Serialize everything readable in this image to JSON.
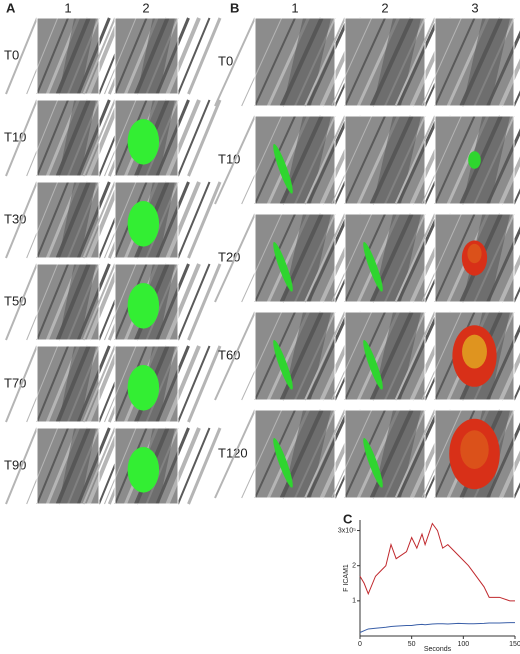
{
  "panel_a": {
    "label": "A",
    "columns": [
      "1",
      "2"
    ],
    "rows": [
      "T0",
      "T10",
      "T30",
      "T50",
      "T70",
      "T90"
    ]
  },
  "panel_b": {
    "label": "B",
    "columns": [
      "1",
      "2",
      "3"
    ],
    "rows": [
      "T0",
      "T10",
      "T20",
      "T60",
      "T120"
    ]
  },
  "chart_data": {
    "type": "line",
    "label": "C",
    "xlabel": "Seconds",
    "ylabel": "F ICAM1",
    "x": [
      0,
      4,
      8,
      15,
      25,
      30,
      35,
      45,
      50,
      55,
      60,
      63,
      70,
      75,
      80,
      85,
      95,
      105,
      110,
      120,
      125,
      135,
      145,
      150
    ],
    "series": [
      {
        "color": "#c0282d",
        "values": [
          1.7,
          1.5,
          1.2,
          1.7,
          2.0,
          2.6,
          2.2,
          2.4,
          2.8,
          2.5,
          2.9,
          2.6,
          3.2,
          3.0,
          2.5,
          2.6,
          2.3,
          2.0,
          1.8,
          1.4,
          1.1,
          1.1,
          1.0,
          1.0
        ]
      },
      {
        "color": "#3a5fa8",
        "values": [
          0.1,
          0.15,
          0.2,
          0.22,
          0.25,
          0.27,
          0.28,
          0.3,
          0.3,
          0.32,
          0.33,
          0.32,
          0.34,
          0.35,
          0.35,
          0.34,
          0.36,
          0.35,
          0.35,
          0.36,
          0.37,
          0.37,
          0.38,
          0.38
        ]
      }
    ],
    "xlim": [
      0,
      150
    ],
    "ylim": [
      0,
      3.3
    ],
    "xticks": [
      0,
      50,
      100,
      150
    ],
    "yticks": [
      1,
      2,
      {
        "value": 3,
        "label": "3x10⁵"
      }
    ]
  }
}
